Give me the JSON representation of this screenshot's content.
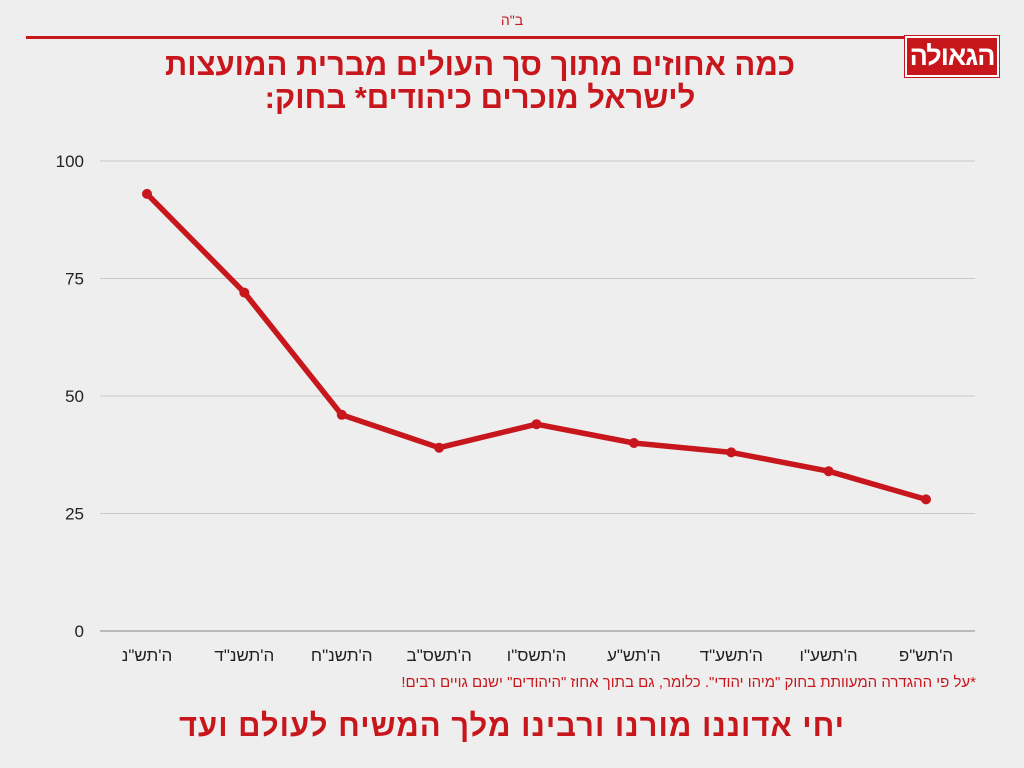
{
  "header": {
    "bh": "ב\"ה",
    "logo_text": "הגאולה"
  },
  "title": {
    "line1": "כמה אחוזים מתוך סך העולים מברית המועצות",
    "line2": "לישראל מוכרים כיהודים* בחוק:"
  },
  "footnote": "*על פי ההגדרה המעוותת בחוק \"מיהו יהודי\". כלומר, גם בתוך אחוז \"היהודים\" ישנם גויים רבים!",
  "slogan": "יחי אדוננו מורנו ורבינו מלך המשיח לעולם ועד",
  "colors": {
    "accent": "#c8161d",
    "background": "#eeeeee",
    "grid": "#c8c8c8",
    "text": "#222222"
  },
  "chart_data": {
    "type": "line",
    "categories": [
      "ה'תש\"נ",
      "ה'תשנ\"ד",
      "ה'תשנ\"ח",
      "ה'תשס\"ב",
      "ה'תשס\"ו",
      "ה'תש\"ע",
      "ה'תשע\"ד",
      "ה'תשע\"ו",
      "ה'תש\"פ"
    ],
    "series": [
      {
        "values": [
          93,
          72,
          46,
          39,
          44,
          40,
          38,
          34,
          28
        ]
      }
    ],
    "ylim": [
      0,
      100
    ],
    "yticks": [
      0,
      25,
      50,
      75,
      100
    ],
    "grid": true,
    "legend": "none"
  }
}
